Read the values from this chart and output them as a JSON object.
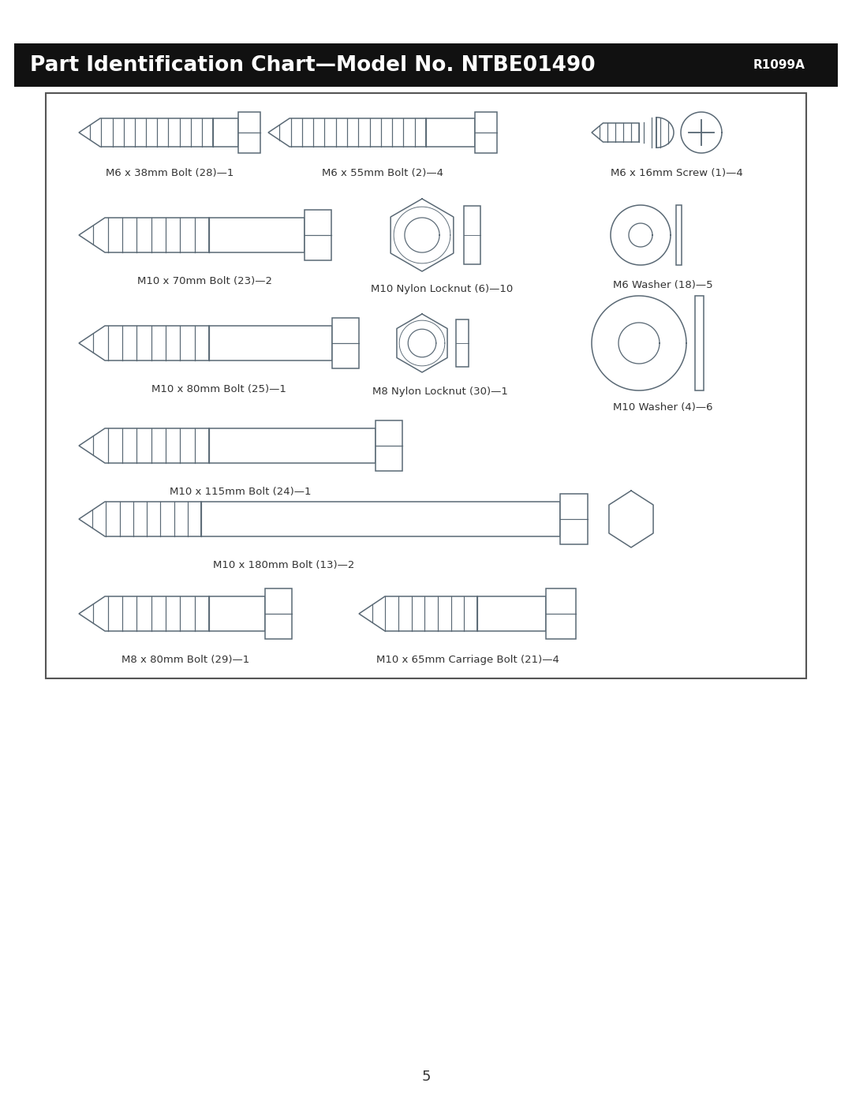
{
  "title": "Part Identification Chart—Model No. NTBE01490",
  "title_right": "R1099A",
  "line_color": "#5a6975",
  "text_color": "#333333",
  "page_number": "5",
  "parts": [
    {
      "label": "M6 x 38mm Bolt (28)—1"
    },
    {
      "label": "M6 x 55mm Bolt (2)—4"
    },
    {
      "label": "M6 x 16mm Screw (1)—4"
    },
    {
      "label": "M10 x 70mm Bolt (23)—2"
    },
    {
      "label": "M10 Nylon Locknut (6)—10"
    },
    {
      "label": "M6 Washer (18)—5"
    },
    {
      "label": "M10 x 80mm Bolt (25)—1"
    },
    {
      "label": "M8 Nylon Locknut (30)—1"
    },
    {
      "label": "M10 Washer (4)—6"
    },
    {
      "label": "M10 x 115mm Bolt (24)—1"
    },
    {
      "label": "M10 x 180mm Bolt (13)—2"
    },
    {
      "label": "M8 x 80mm Bolt (29)—1"
    },
    {
      "label": "M10 x 65mm Carriage Bolt (21)—4"
    }
  ]
}
